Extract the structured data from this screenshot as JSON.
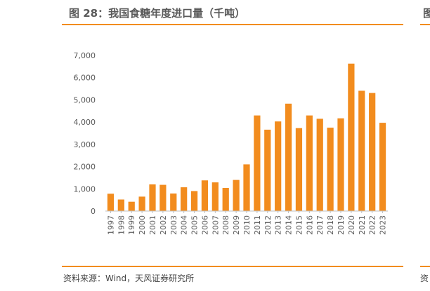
{
  "title": "图 28：我国食糖年度进口量（千吨）",
  "source": "资料来源：Wind，天风证券研究所",
  "next_panel": {
    "title_fragment": "图",
    "source_fragment": "资"
  },
  "colors": {
    "bar": "#f28c1e",
    "rule": "#f28c1e",
    "axis": "#bfbfbf",
    "text": "#595959"
  },
  "chart_data": {
    "type": "bar",
    "title": "",
    "xlabel": "",
    "ylabel": "",
    "ylim": [
      0,
      7000
    ],
    "yticks": [
      0,
      1000,
      2000,
      3000,
      4000,
      5000,
      6000,
      7000
    ],
    "ytick_labels": [
      "0",
      "1,000",
      "2,000",
      "3,000",
      "4,000",
      "5,000",
      "6,000",
      "7,000"
    ],
    "grid": false,
    "legend": "none",
    "categories": [
      "1997",
      "1998",
      "1999",
      "2000",
      "2001",
      "2002",
      "2003",
      "2004",
      "2005",
      "2006",
      "2007",
      "2008",
      "2009",
      "2010",
      "2011",
      "2012",
      "2013",
      "2014",
      "2015",
      "2016",
      "2017",
      "2018",
      "2019",
      "2020",
      "2021",
      "2022",
      "2023"
    ],
    "values": [
      780,
      520,
      420,
      650,
      1200,
      1180,
      790,
      1070,
      900,
      1380,
      1290,
      1040,
      1400,
      2100,
      4300,
      3660,
      4030,
      4830,
      3730,
      4300,
      4150,
      3750,
      4170,
      6630,
      5410,
      5310,
      3970
    ]
  }
}
